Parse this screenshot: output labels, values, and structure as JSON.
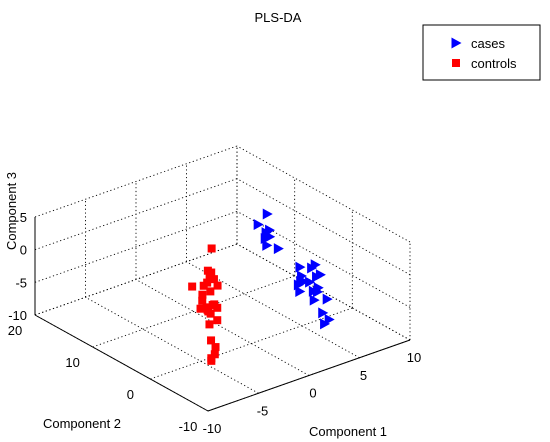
{
  "chart_data": {
    "type": "scatter",
    "projection": "3d",
    "title": "PLS-DA",
    "xlabel": "Component 1",
    "ylabel": "Component 2",
    "zlabel": "Component 3",
    "xlim": [
      -10,
      10
    ],
    "ylim": [
      -10,
      20
    ],
    "zlim": [
      -10,
      5
    ],
    "xticks": [
      "-10",
      "-5",
      "0",
      "5",
      "10"
    ],
    "yticks": [
      "-10",
      "0",
      "10",
      "20"
    ],
    "zticks": [
      "-10",
      "-5",
      "0",
      "5"
    ],
    "grid": true,
    "legend_position": "top-right",
    "series": [
      {
        "name": "cases",
        "marker": "triangle-right",
        "color": "#0000ff",
        "points": [
          [
            7.4,
            10.2,
            0.8
          ],
          [
            5.7,
            8.8,
            0.8
          ],
          [
            7.0,
            9.1,
            -0.9
          ],
          [
            5.6,
            7.4,
            -0.6
          ],
          [
            6.5,
            6.7,
            -2.3
          ],
          [
            5.3,
            6.6,
            -1.1
          ],
          [
            5.8,
            7.6,
            0.1
          ],
          [
            6.5,
            8.2,
            -1.2
          ],
          [
            4.0,
            -1.7,
            -1.0
          ],
          [
            4.3,
            -0.9,
            -0.2
          ],
          [
            4.2,
            -3.1,
            0.8
          ],
          [
            3.7,
            -4.6,
            2.3
          ],
          [
            3.6,
            -5.0,
            0.7
          ],
          [
            3.7,
            -5.5,
            1.2
          ],
          [
            2.8,
            -6.7,
            0.3
          ],
          [
            3.6,
            -3.8,
            -0.7
          ],
          [
            3.6,
            -2.8,
            -1.1
          ],
          [
            3.4,
            -2.2,
            -1.8
          ],
          [
            3.2,
            -2.8,
            -2.4
          ],
          [
            4.2,
            -1.2,
            -2.2
          ],
          [
            3.4,
            -4.8,
            -1.5
          ],
          [
            3.3,
            -5.7,
            -1.1
          ],
          [
            2.6,
            -8.6,
            -0.4
          ],
          [
            3.2,
            -5.3,
            -2.5
          ],
          [
            2.1,
            -8.7,
            -2.2
          ],
          [
            0.8,
            -11.3,
            -1.9
          ],
          [
            1.2,
            -11.4,
            -1.4
          ]
        ]
      },
      {
        "name": "controls",
        "marker": "square",
        "color": "#ff0000",
        "points": [
          [
            -5.3,
            -2.4,
            8.6
          ],
          [
            -5.8,
            -2.5,
            3.7
          ],
          [
            -6.8,
            -3.4,
            1.9
          ],
          [
            -4.7,
            -1.0,
            3.1
          ],
          [
            -5.3,
            -2.8,
            4.1
          ],
          [
            -7.0,
            -2.0,
            3.5
          ],
          [
            -7.4,
            -5.2,
            2.1
          ],
          [
            -6.9,
            -4.5,
            1.1
          ],
          [
            -5.0,
            -2.9,
            3.0
          ],
          [
            -5.7,
            -1.5,
            1.3
          ],
          [
            -7.2,
            -3.8,
            1.1
          ],
          [
            -6.0,
            -3.4,
            2.9
          ],
          [
            -5.0,
            -0.5,
            1.8
          ],
          [
            -4.6,
            -1.1,
            3.9
          ],
          [
            -5.1,
            -1.4,
            4.6
          ],
          [
            -6.8,
            -6.0,
            2.1
          ],
          [
            -7.8,
            -6.4,
            0.3
          ],
          [
            -6.8,
            -6.0,
            0.2
          ],
          [
            -8.1,
            -7.2,
            -1.6
          ],
          [
            -6.6,
            -4.1,
            0.5
          ],
          [
            -6.2,
            -3.8,
            -0.2
          ],
          [
            -5.9,
            -3.9,
            1.1
          ],
          [
            -5.2,
            -2.4,
            -0.1
          ],
          [
            -7.2,
            -6.4,
            -3.5
          ],
          [
            -7.1,
            -6.1,
            -4.8
          ],
          [
            -9.1,
            -9.0,
            -2.9
          ],
          [
            -9.1,
            -9.0,
            -3.3
          ]
        ]
      }
    ]
  }
}
